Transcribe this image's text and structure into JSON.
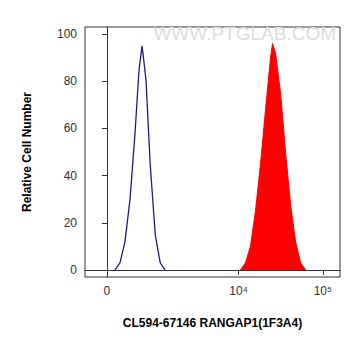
{
  "chart_data": {
    "type": "line",
    "xlabel": "CL594-67146 RANGAP1(1F3A4)",
    "ylabel": "Relative Cell Number",
    "watermark": "WWW.PTGLAB.COM",
    "xlim": [
      -350,
      160000
    ],
    "xticks": [
      0,
      {
        "value": 10000,
        "label": "10⁴"
      },
      {
        "value": 100000,
        "label": "10⁵"
      }
    ],
    "ylim": [
      -3,
      103
    ],
    "yticks": [
      0,
      20,
      40,
      60,
      80,
      100
    ],
    "grid": false,
    "series": [
      {
        "type": "line",
        "color": "#1c1c8a",
        "x": [
          121,
          200,
          282,
          370,
          464,
          547,
          612,
          657,
          706,
          811,
          955,
          1114,
          1286
        ],
        "values": [
          0,
          3,
          12,
          30,
          58,
          85,
          95,
          88,
          80,
          45,
          15,
          3,
          0
        ]
      },
      {
        "type": "area",
        "color": "#ff0000",
        "x": [
          10520,
          12080,
          13860,
          15890,
          18250,
          20920,
          23980,
          25340,
          27500,
          31560,
          36150,
          41450,
          47560,
          54600,
          62620
        ],
        "values": [
          0,
          3,
          10,
          25,
          45,
          68,
          90,
          96,
          92,
          75,
          50,
          28,
          12,
          3,
          0
        ]
      }
    ]
  }
}
